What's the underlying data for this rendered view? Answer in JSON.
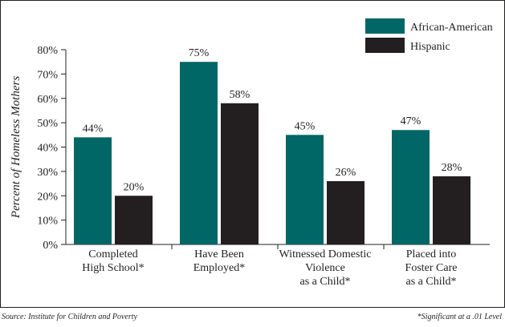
{
  "chart_data": {
    "type": "bar",
    "title": "",
    "xlabel": "",
    "ylabel": "Percent of Homeless Mothers",
    "ylim": [
      0,
      80
    ],
    "yticks": [
      "0%",
      "10%",
      "20%",
      "30%",
      "40%",
      "50%",
      "60%",
      "70%",
      "80%"
    ],
    "grid": false,
    "legend_position": "top-right",
    "categories": [
      [
        "Completed",
        "High School*"
      ],
      [
        "Have Been",
        "Employed*"
      ],
      [
        "Witnessed Domestic",
        "Violence",
        "as a Child*"
      ],
      [
        "Placed into",
        "Foster Care",
        "as a Child*"
      ]
    ],
    "series": [
      {
        "name": "African-American",
        "color": "#006666",
        "values": [
          44,
          75,
          45,
          47
        ],
        "labels": [
          "44%",
          "75%",
          "45%",
          "47%"
        ]
      },
      {
        "name": "Hispanic",
        "color": "#231f20",
        "values": [
          20,
          58,
          26,
          28
        ],
        "labels": [
          "20%",
          "58%",
          "26%",
          "28%"
        ]
      }
    ]
  },
  "footnotes": {
    "source": "Source:  Institute for Children and Poverty",
    "significance": "*Significant at a .01 Level"
  }
}
